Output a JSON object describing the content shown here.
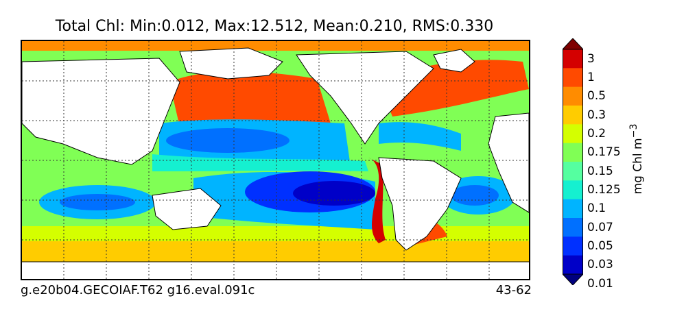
{
  "title": "Total Chl: Min:0.012, Max:12.512, Mean:0.210, RMS:0.330",
  "footer": {
    "run_id": "g.e20b04.GECOIAF.T62 g16.eval.091c",
    "years": "43-62"
  },
  "colorbar": {
    "unit_label": "mg Chl m",
    "unit_exponent": "−3",
    "levels": [
      "3",
      "1",
      "0.5",
      "0.3",
      "0.2",
      "0.175",
      "0.15",
      "0.125",
      "0.1",
      "0.07",
      "0.05",
      "0.03",
      "0.01"
    ],
    "colors": [
      "#7f0000",
      "#d40000",
      "#ff4a00",
      "#ff8c00",
      "#ffcc00",
      "#d4ff00",
      "#80ff55",
      "#55ffa0",
      "#15f0d0",
      "#00b4ff",
      "#0070ff",
      "#0030ff",
      "#0000c8",
      "#00007f"
    ]
  },
  "map": {
    "land_color": "#ffffff",
    "gridlines": true
  }
}
